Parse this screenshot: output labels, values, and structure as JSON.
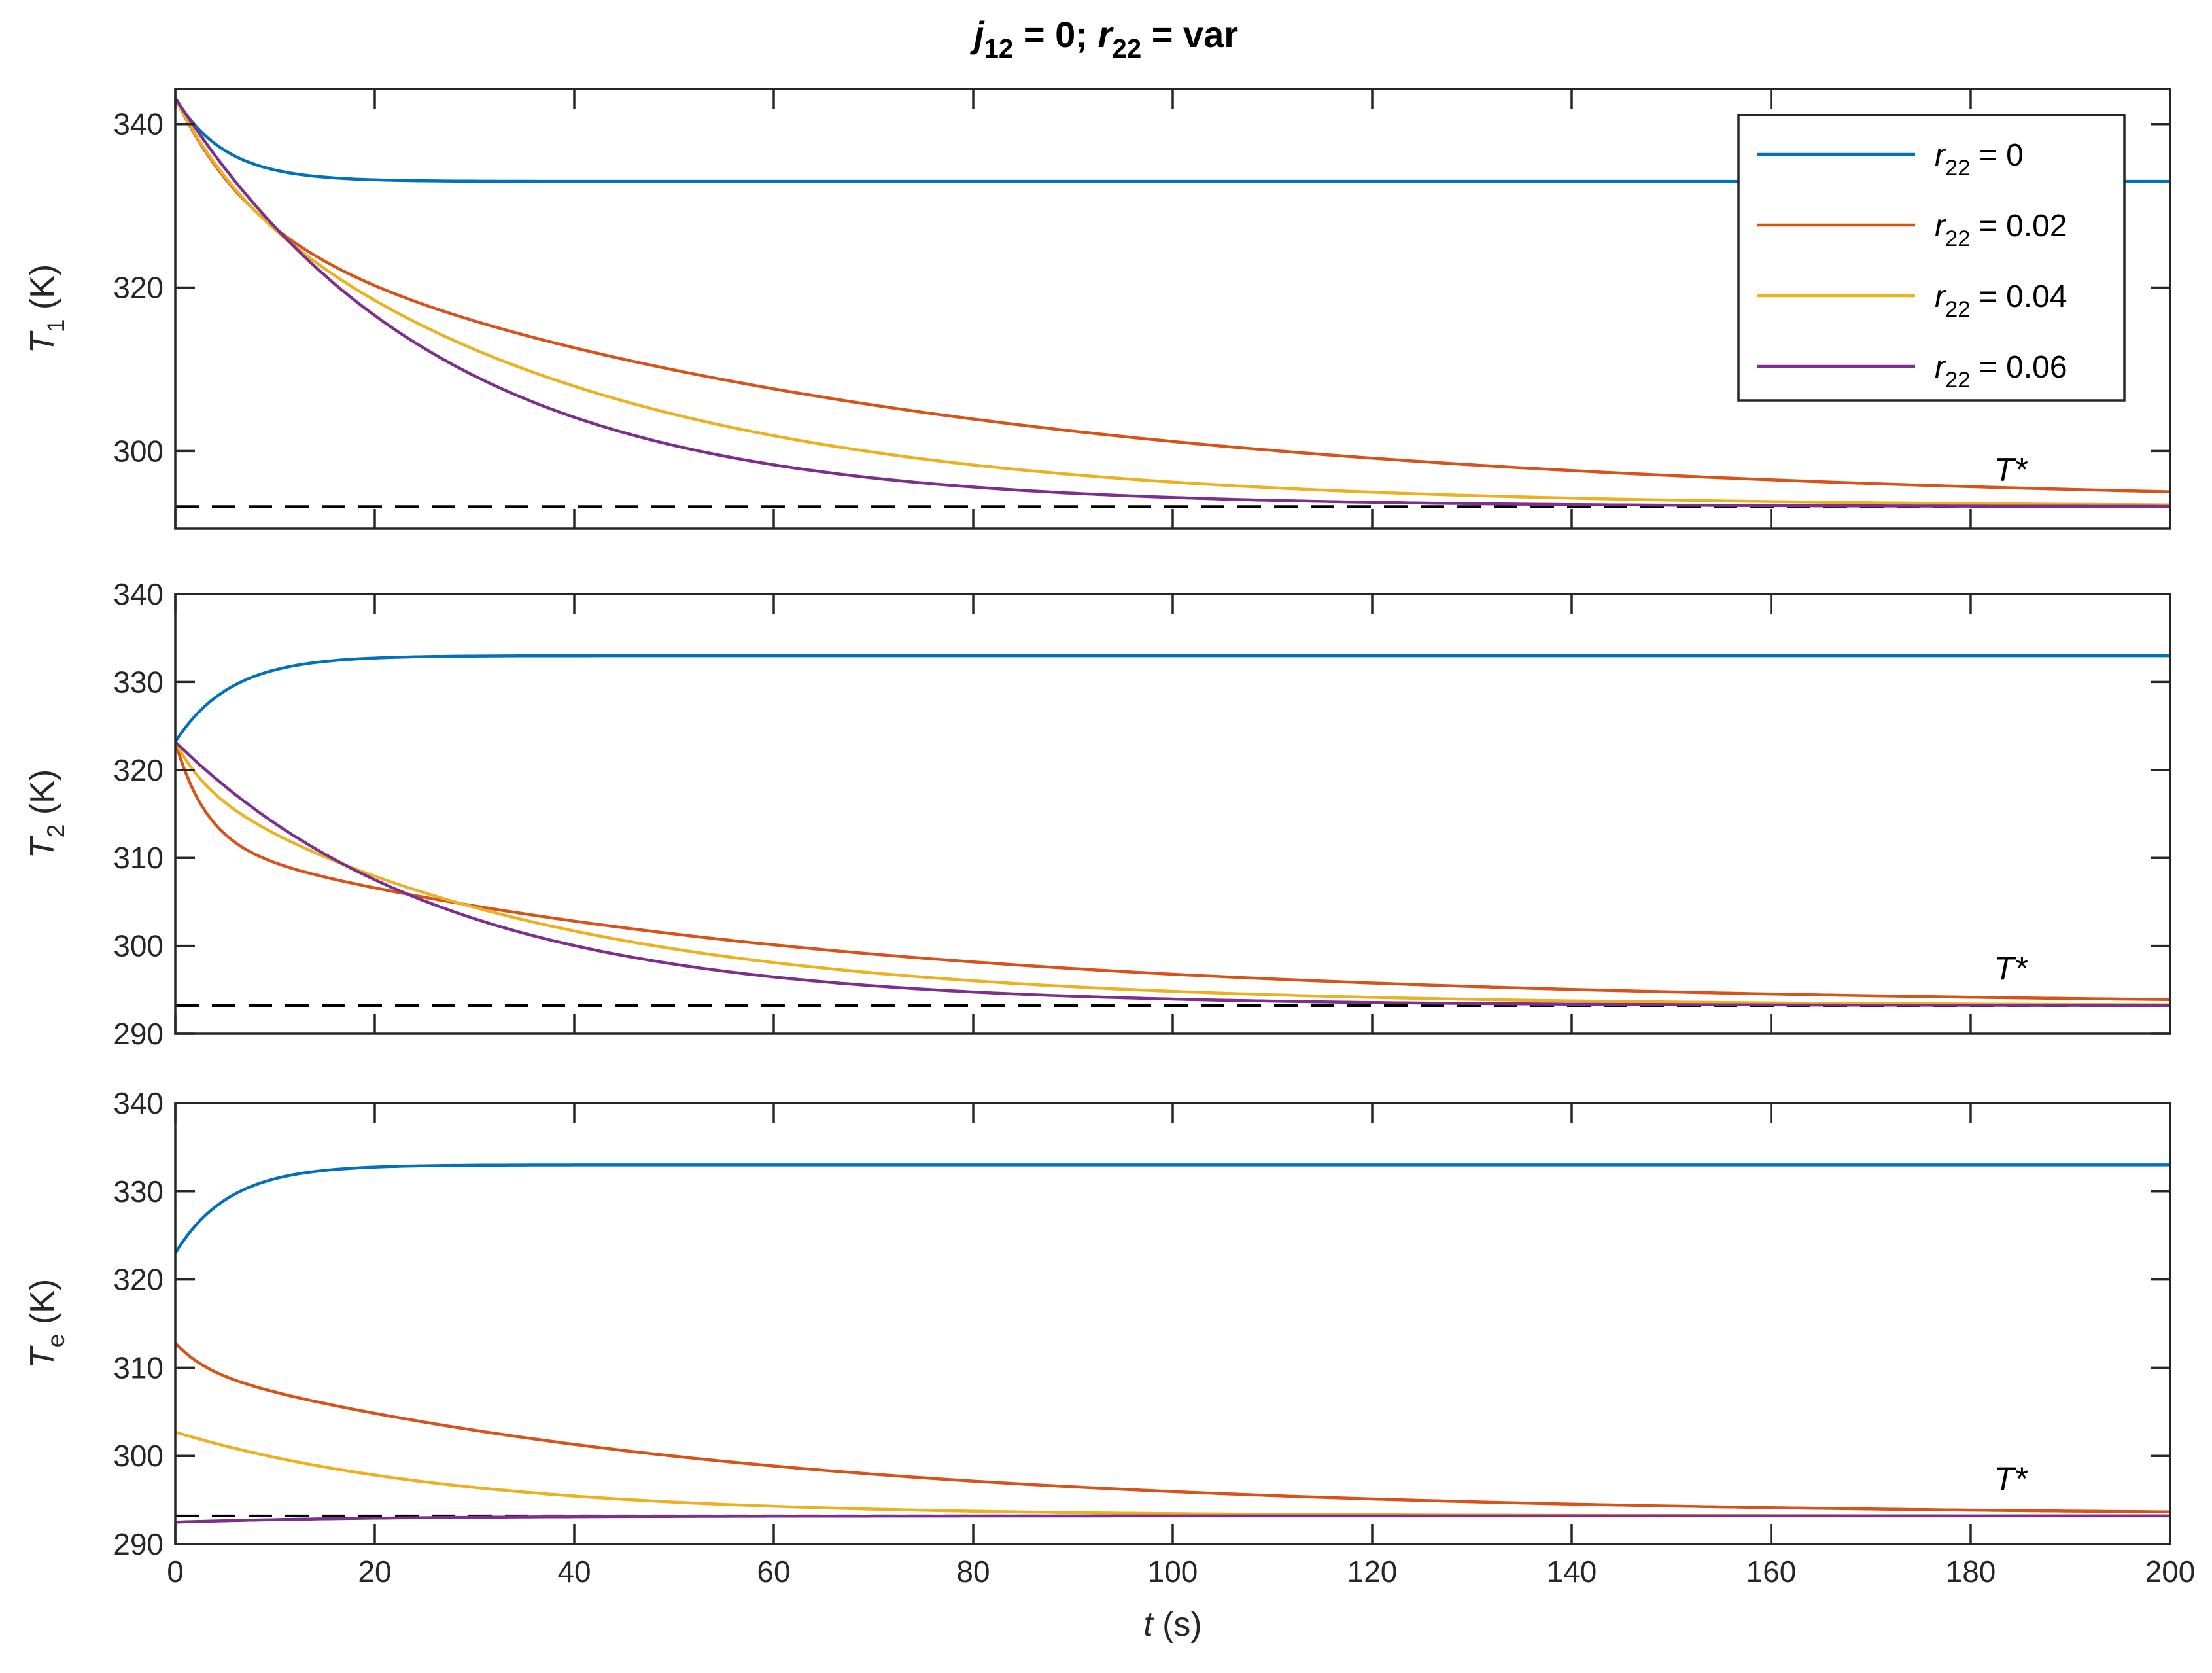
{
  "title": {
    "var1": "j",
    "sub1": "12",
    "rest1": " = 0; ",
    "var2": "r",
    "sub2": "22",
    "rest2": " = var"
  },
  "colors": {
    "axis": "#262626",
    "reference": "#000000",
    "series": [
      "#0072BD",
      "#D95319",
      "#EDB120",
      "#7E2F8E"
    ]
  },
  "legend": {
    "placement": "top-right of first panel",
    "entries": [
      {
        "var": "r",
        "sub": "22",
        "rest": " = 0"
      },
      {
        "var": "r",
        "sub": "22",
        "rest": " = 0.02"
      },
      {
        "var": "r",
        "sub": "22",
        "rest": " = 0.04"
      },
      {
        "var": "r",
        "sub": "22",
        "rest": " = 0.06"
      }
    ]
  },
  "chart_data": [
    {
      "type": "line",
      "id": "T1",
      "ylabel": {
        "var": "T",
        "sub": "1",
        "rest": " (K)"
      },
      "xlim": [
        0,
        200
      ],
      "ylim": [
        290.5,
        344.3
      ],
      "yticks": [
        300,
        320,
        340
      ],
      "xticks": [
        0,
        20,
        40,
        60,
        80,
        100,
        120,
        140,
        160,
        180,
        200
      ],
      "show_xtick_labels": false,
      "reference": {
        "label": "T*",
        "y": 293.2,
        "label_x": 184
      },
      "series": [
        {
          "name": "r22 = 0",
          "y0": 343.2,
          "yinf": 333.0,
          "k1": 0.2,
          "a": 0,
          "k2": 0.5
        },
        {
          "name": "r22 = 0.02",
          "y0": 343.2,
          "yinf": 293.2,
          "k1": 0.0148,
          "a": -0.3,
          "k2": 0.12
        },
        {
          "name": "r22 = 0.04",
          "y0": 343.2,
          "yinf": 293.2,
          "k1": 0.0265,
          "a": -0.15,
          "k2": 0.15
        },
        {
          "name": "r22 = 0.06",
          "y0": 343.2,
          "yinf": 293.2,
          "k1": 0.038,
          "a": 0,
          "k2": 0.5
        }
      ]
    },
    {
      "type": "line",
      "id": "T2",
      "ylabel": {
        "var": "T",
        "sub": "2",
        "rest": " (K)"
      },
      "xlim": [
        0,
        200
      ],
      "ylim": [
        290,
        340
      ],
      "yticks": [
        290,
        300,
        310,
        320,
        330,
        340
      ],
      "xticks": [
        0,
        20,
        40,
        60,
        80,
        100,
        120,
        140,
        160,
        180,
        200
      ],
      "show_xtick_labels": false,
      "reference": {
        "label": "T*",
        "y": 293.2,
        "label_x": 184
      },
      "series": [
        {
          "name": "r22 = 0",
          "y0": 323.2,
          "yinf": 333.0,
          "k1": 0.18,
          "a": 0,
          "k2": 0.5
        },
        {
          "name": "r22 = 0.02",
          "y0": 323.2,
          "yinf": 293.2,
          "k1": 0.0165,
          "a": -0.38,
          "k2": 0.3
        },
        {
          "name": "r22 = 0.04",
          "y0": 323.2,
          "yinf": 293.2,
          "k1": 0.0275,
          "a": -0.15,
          "k2": 0.3
        },
        {
          "name": "r22 = 0.06",
          "y0": 323.2,
          "yinf": 293.2,
          "k1": 0.037,
          "a": 0,
          "k2": 0.5
        }
      ]
    },
    {
      "type": "line",
      "id": "Te",
      "ylabel": {
        "var": "T",
        "sub": "e",
        "rest": " (K)"
      },
      "xlabel": {
        "var": "t",
        "rest": " (s)"
      },
      "xlim": [
        0,
        200
      ],
      "ylim": [
        290,
        340
      ],
      "yticks": [
        290,
        300,
        310,
        320,
        330,
        340
      ],
      "xticks": [
        0,
        20,
        40,
        60,
        80,
        100,
        120,
        140,
        160,
        180,
        200
      ],
      "show_xtick_labels": true,
      "reference": {
        "label": "T*",
        "y": 293.2,
        "label_x": 184
      },
      "series": [
        {
          "name": "r22 = 0",
          "y0": 323.0,
          "yinf": 333.0,
          "k1": 0.185,
          "a": 0,
          "k2": 0.5
        },
        {
          "name": "r22 = 0.02",
          "y0": 312.8,
          "yinf": 293.2,
          "k1": 0.018,
          "a": -0.15,
          "k2": 0.3
        },
        {
          "name": "r22 = 0.04",
          "y0": 302.7,
          "yinf": 293.2,
          "k1": 0.036,
          "a": 0,
          "k2": 0.5
        },
        {
          "name": "r22 = 0.06",
          "y0": 292.5,
          "yinf": 293.2,
          "k1": 0.05,
          "a": 0,
          "k2": 0.5
        }
      ]
    }
  ]
}
